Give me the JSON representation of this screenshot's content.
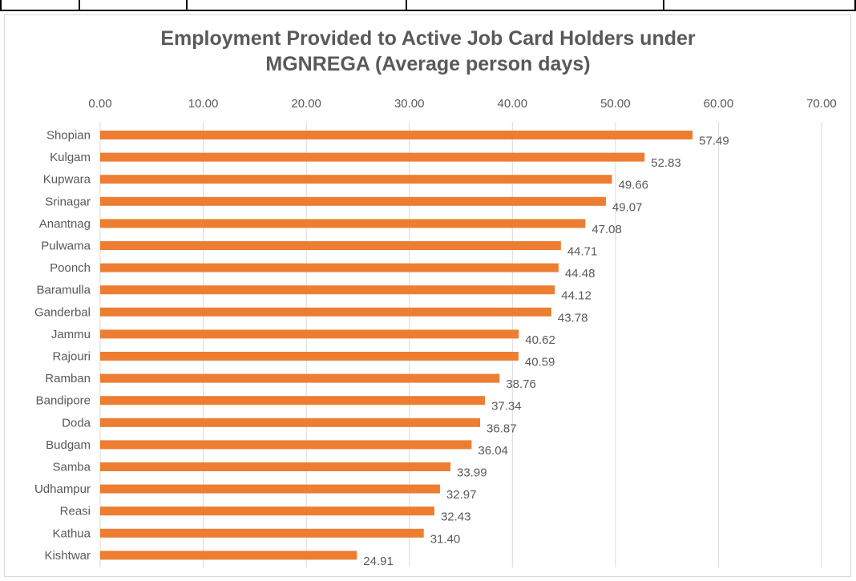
{
  "chart_data": {
    "type": "bar",
    "orientation": "horizontal",
    "title_lines": [
      "Employment Provided to Active Job Card Holders under",
      "MGNREGA (Average person days)"
    ],
    "categories": [
      "Shopian",
      "Kulgam",
      "Kupwara",
      "Srinagar",
      "Anantnag",
      "Pulwama",
      "Poonch",
      "Baramulla",
      "Ganderbal",
      "Jammu",
      "Rajouri",
      "Ramban",
      "Bandipore",
      "Doda",
      "Budgam",
      "Samba",
      "Udhampur",
      "Reasi",
      "Kathua",
      "Kishtwar"
    ],
    "values": [
      57.49,
      52.83,
      49.66,
      49.07,
      47.08,
      44.71,
      44.48,
      44.12,
      43.78,
      40.62,
      40.59,
      38.76,
      37.34,
      36.87,
      36.04,
      33.99,
      32.97,
      32.43,
      31.4,
      24.91
    ],
    "value_labels": [
      "57.49",
      "52.83",
      "49.66",
      "49.07",
      "47.08",
      "44.71",
      "44.48",
      "44.12",
      "43.78",
      "40.62",
      "40.59",
      "38.76",
      "37.34",
      "36.87",
      "36.04",
      "33.99",
      "32.97",
      "32.43",
      "31.40",
      "24.91"
    ],
    "x_ticks": [
      "0.00",
      "10.00",
      "20.00",
      "30.00",
      "40.00",
      "50.00",
      "60.00",
      "70.00"
    ],
    "xlim": [
      0,
      70
    ],
    "x_axis_position": "top",
    "grid": true,
    "bar_color": "#ed7d31",
    "gridline_color": "#d9d9d9",
    "text_color": "#595959"
  }
}
